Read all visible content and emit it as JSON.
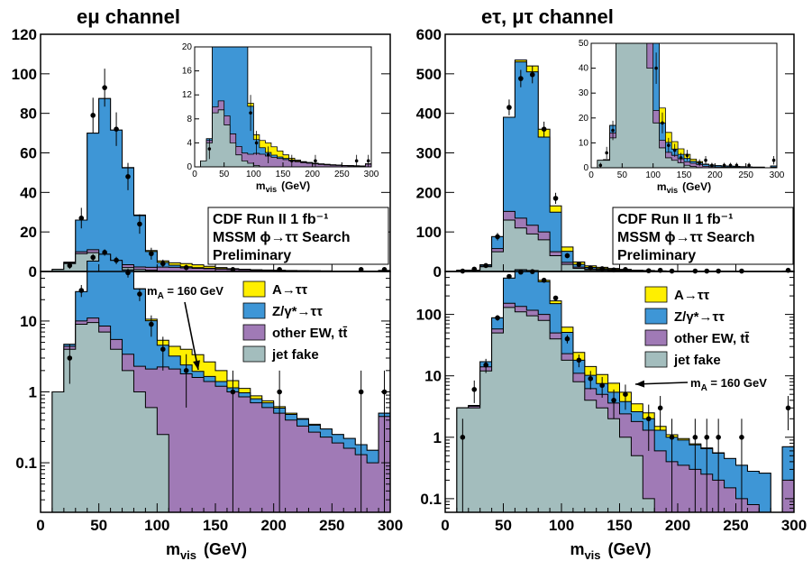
{
  "colors": {
    "signal": "#ffef00",
    "ztautau": "#3e96d6",
    "other_ew": "#a07ab6",
    "jet_fake": "#a3bdbd",
    "data": "#000000"
  },
  "info_box": [
    "CDF Run II  1 fb⁻¹",
    "MSSM ϕ→ττ Search",
    "Preliminary"
  ],
  "legend": [
    "A→ττ",
    "Z/γ*→ττ",
    "other EW, tt̄",
    "jet fake"
  ],
  "chart_data": [
    {
      "type": "histogram",
      "channel_title": "eμ channel",
      "xlabel": "m",
      "xlabel_sub": "vis",
      "xlabel_unit": "(GeV)",
      "x_ticks": [
        "0",
        "50",
        "100",
        "150",
        "200",
        "250",
        "300"
      ],
      "main_y_ticks": [
        "0",
        "20",
        "40",
        "60",
        "80",
        "100",
        "120"
      ],
      "log_y_ticks": [
        "0.1",
        "1",
        "10"
      ],
      "inset_x_ticks": [
        "0",
        "50",
        "100",
        "150",
        "200",
        "250",
        "300"
      ],
      "inset_y_ticks": [
        "0",
        "4",
        "8",
        "12",
        "16",
        "20"
      ],
      "bin_edges": [
        10,
        20,
        30,
        40,
        50,
        60,
        70,
        80,
        90,
        100,
        110,
        120,
        130,
        140,
        150,
        160,
        170,
        180,
        190,
        200,
        210,
        220,
        230,
        240,
        250,
        260,
        270,
        280,
        290,
        300
      ],
      "stack_order": [
        "jet_fake",
        "other_ew",
        "ztautau",
        "signal"
      ],
      "jet_fake": [
        1.0,
        4.0,
        9.0,
        9.5,
        7.0,
        4.0,
        2.0,
        1.0,
        0.6,
        0.25,
        0,
        0,
        0,
        0,
        0,
        0,
        0,
        0,
        0,
        0,
        0,
        0,
        0,
        0,
        0,
        0,
        0,
        0,
        0
      ],
      "other_ew": [
        0,
        0.4,
        1.0,
        1.5,
        1.5,
        1.5,
        1.4,
        1.3,
        1.5,
        2.0,
        2.1,
        1.8,
        1.6,
        1.4,
        1.2,
        1.0,
        0.85,
        0.7,
        0.6,
        0.5,
        0.4,
        0.33,
        0.27,
        0.23,
        0.19,
        0.16,
        0.13,
        0.1,
        0.45
      ],
      "ztautau": [
        0,
        0.3,
        16.0,
        59.0,
        79.0,
        66.0,
        49.0,
        26.0,
        8.0,
        2.3,
        1.1,
        0.6,
        0.35,
        0.25,
        0.2,
        0.14,
        0.12,
        0.1,
        0.1,
        0.09,
        0.08,
        0.08,
        0.07,
        0.07,
        0.06,
        0.06,
        0.05,
        0.05,
        0.05
      ],
      "signal": [
        0,
        0,
        0,
        0,
        0,
        0,
        0.2,
        0.3,
        0.5,
        0.8,
        1.2,
        1.6,
        1.4,
        1.0,
        0.6,
        0.3,
        0.15,
        0.08,
        0.05,
        0.03,
        0.02,
        0.01,
        0.01,
        0,
        0,
        0,
        0,
        0,
        0
      ],
      "data_points": [
        {
          "x": 25,
          "y": 3.0,
          "err": 1.7
        },
        {
          "x": 35,
          "y": 27,
          "err": 5.2
        },
        {
          "x": 45,
          "y": 79,
          "err": 8.9
        },
        {
          "x": 55,
          "y": 93,
          "err": 9.6
        },
        {
          "x": 65,
          "y": 72,
          "err": 8.5
        },
        {
          "x": 75,
          "y": 48,
          "err": 6.9
        },
        {
          "x": 85,
          "y": 24,
          "err": 4.9
        },
        {
          "x": 95,
          "y": 9,
          "err": 3.0
        },
        {
          "x": 105,
          "y": 4,
          "err": 2.0
        },
        {
          "x": 125,
          "y": 2,
          "err": 1.4
        },
        {
          "x": 165,
          "y": 1,
          "err": 1.0
        },
        {
          "x": 205,
          "y": 1,
          "err": 1.0
        },
        {
          "x": 275,
          "y": 1,
          "err": 1.0
        },
        {
          "x": 295,
          "y": 1,
          "err": 1.0
        }
      ],
      "main_ylim": [
        0,
        120
      ],
      "log_ylim": [
        0.02,
        50
      ],
      "inset_xlim": [
        0,
        300
      ],
      "inset_ylim": [
        0,
        20
      ],
      "annotation": "mₐ = 160 GeV",
      "annotation_main": "m",
      "annotation_sub": "A",
      "annotation_tail": " = 160 GeV"
    },
    {
      "type": "histogram",
      "channel_title": "eτ, μτ channel",
      "xlabel": "m",
      "xlabel_sub": "vis",
      "xlabel_unit": "(GeV)",
      "x_ticks": [
        "0",
        "50",
        "100",
        "150",
        "200",
        "250",
        "300"
      ],
      "main_y_ticks": [
        "0",
        "100",
        "200",
        "300",
        "400",
        "500",
        "600"
      ],
      "log_y_ticks": [
        "0.1",
        "1",
        "10",
        "100"
      ],
      "inset_x_ticks": [
        "0",
        "50",
        "100",
        "150",
        "200",
        "250",
        "300"
      ],
      "inset_y_ticks": [
        "0",
        "10",
        "20",
        "30",
        "40",
        "50"
      ],
      "bin_edges": [
        10,
        20,
        30,
        40,
        50,
        60,
        70,
        80,
        90,
        100,
        110,
        120,
        130,
        140,
        150,
        160,
        170,
        180,
        190,
        200,
        210,
        220,
        230,
        240,
        250,
        260,
        270,
        280,
        290,
        300
      ],
      "stack_order": [
        "jet_fake",
        "other_ew",
        "ztautau",
        "signal"
      ],
      "jet_fake": [
        3.0,
        3.0,
        12.0,
        50.0,
        130.0,
        110.0,
        95.0,
        80.0,
        40.0,
        18.0,
        8.0,
        4.0,
        3.0,
        2.0,
        1.0,
        0.5,
        0.1,
        0,
        0,
        0,
        0,
        0,
        0,
        0,
        0,
        0,
        0,
        0,
        0
      ],
      "other_ew": [
        0,
        0.2,
        2.0,
        8.0,
        22.0,
        25.0,
        22.0,
        20.0,
        10.0,
        5.0,
        3.0,
        2.2,
        2.0,
        1.6,
        1.4,
        1.3,
        1.2,
        0.6,
        0.4,
        0.35,
        0.3,
        0.25,
        0.2,
        0.15,
        0.1,
        0.08,
        0.06,
        0,
        0.2
      ],
      "ztautau": [
        0,
        0.1,
        3.0,
        30.0,
        238.0,
        395.0,
        388.0,
        240.0,
        100.0,
        28.0,
        7.0,
        4.0,
        2.5,
        1.8,
        1.4,
        0.8,
        0.7,
        0.7,
        0.6,
        0.55,
        0.45,
        0.4,
        0.35,
        0.3,
        0.25,
        0.2,
        0.2,
        0,
        0.5
      ],
      "signal": [
        0,
        0,
        0,
        0,
        0,
        5.0,
        15.0,
        20.0,
        16.0,
        11.0,
        6.0,
        4.0,
        3.0,
        2.2,
        1.6,
        0.9,
        0.5,
        0.2,
        0.1,
        0.05,
        0.03,
        0.02,
        0.01,
        0,
        0,
        0,
        0,
        0,
        0
      ],
      "data_points": [
        {
          "x": 15,
          "y": 1,
          "err": 1.0
        },
        {
          "x": 25,
          "y": 6,
          "err": 2.4
        },
        {
          "x": 35,
          "y": 15,
          "err": 3.9
        },
        {
          "x": 45,
          "y": 88,
          "err": 9.4
        },
        {
          "x": 55,
          "y": 415,
          "err": 20
        },
        {
          "x": 65,
          "y": 488,
          "err": 22
        },
        {
          "x": 75,
          "y": 498,
          "err": 22
        },
        {
          "x": 85,
          "y": 360,
          "err": 19
        },
        {
          "x": 95,
          "y": 185,
          "err": 14
        },
        {
          "x": 105,
          "y": 40,
          "err": 6.3
        },
        {
          "x": 115,
          "y": 18,
          "err": 4.2
        },
        {
          "x": 125,
          "y": 9,
          "err": 3.0
        },
        {
          "x": 135,
          "y": 7,
          "err": 2.6
        },
        {
          "x": 145,
          "y": 4,
          "err": 2.0
        },
        {
          "x": 155,
          "y": 5,
          "err": 2.2
        },
        {
          "x": 175,
          "y": 2,
          "err": 1.4
        },
        {
          "x": 185,
          "y": 3,
          "err": 1.7
        },
        {
          "x": 195,
          "y": 1,
          "err": 1.0
        },
        {
          "x": 215,
          "y": 1,
          "err": 1.0
        },
        {
          "x": 225,
          "y": 1,
          "err": 1.0
        },
        {
          "x": 235,
          "y": 1,
          "err": 1.0
        },
        {
          "x": 255,
          "y": 1,
          "err": 1.0
        },
        {
          "x": 295,
          "y": 3,
          "err": 1.7
        }
      ],
      "main_ylim": [
        0,
        600
      ],
      "log_ylim": [
        0.06,
        500
      ],
      "inset_xlim": [
        0,
        300
      ],
      "inset_ylim": [
        0,
        50
      ],
      "annotation": "mₐ = 160 GeV",
      "annotation_main": "m",
      "annotation_sub": "A",
      "annotation_tail": " = 160 GeV"
    }
  ]
}
